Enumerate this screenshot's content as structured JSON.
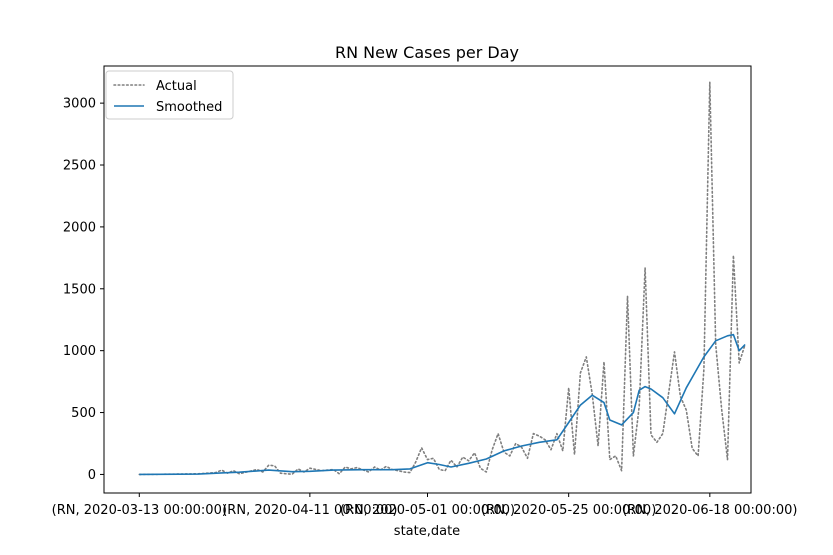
{
  "chart_data": {
    "type": "line",
    "title": "RN New Cases per Day",
    "xlabel": "state,date",
    "ylabel": "",
    "ylim": [
      -150,
      3300
    ],
    "yticks": [
      0,
      500,
      1000,
      1500,
      2000,
      2500,
      3000
    ],
    "xlim": [
      "2020-03-07",
      "2020-06-25"
    ],
    "xticks": [
      {
        "date": "2020-03-13",
        "label": "(RN, 2020-03-13 00:00:00)"
      },
      {
        "date": "2020-04-11",
        "label": "(RN, 2020-04-11 00:00:00)"
      },
      {
        "date": "2020-05-01",
        "label": "(RN, 2020-05-01 00:00:00)"
      },
      {
        "date": "2020-05-25",
        "label": "(RN, 2020-05-25 00:00:00)"
      },
      {
        "date": "2020-06-18",
        "label": "(RN, 2020-06-18 00:00:00)"
      }
    ],
    "legend": {
      "placement": "top-left",
      "entries": [
        "Actual",
        "Smoothed"
      ]
    },
    "grid": false,
    "series": [
      {
        "name": "Actual",
        "color": "#7f7f7f",
        "style": "dotted",
        "points": [
          [
            "2020-03-13",
            0
          ],
          [
            "2020-03-18",
            2
          ],
          [
            "2020-03-23",
            5
          ],
          [
            "2020-03-26",
            15
          ],
          [
            "2020-03-27",
            35
          ],
          [
            "2020-03-28",
            10
          ],
          [
            "2020-03-29",
            30
          ],
          [
            "2020-03-30",
            5
          ],
          [
            "2020-04-02",
            40
          ],
          [
            "2020-04-03",
            20
          ],
          [
            "2020-04-04",
            75
          ],
          [
            "2020-04-05",
            70
          ],
          [
            "2020-04-06",
            10
          ],
          [
            "2020-04-07",
            5
          ],
          [
            "2020-04-08",
            2
          ],
          [
            "2020-04-09",
            45
          ],
          [
            "2020-04-10",
            20
          ],
          [
            "2020-04-11",
            50
          ],
          [
            "2020-04-13",
            30
          ],
          [
            "2020-04-15",
            40
          ],
          [
            "2020-04-16",
            5
          ],
          [
            "2020-04-17",
            60
          ],
          [
            "2020-04-18",
            45
          ],
          [
            "2020-04-19",
            55
          ],
          [
            "2020-04-21",
            20
          ],
          [
            "2020-04-22",
            60
          ],
          [
            "2020-04-23",
            35
          ],
          [
            "2020-04-24",
            65
          ],
          [
            "2020-04-25",
            40
          ],
          [
            "2020-04-26",
            30
          ],
          [
            "2020-04-27",
            20
          ],
          [
            "2020-04-28",
            15
          ],
          [
            "2020-04-29",
            100
          ],
          [
            "2020-04-30",
            215
          ],
          [
            "2020-05-01",
            120
          ],
          [
            "2020-05-02",
            130
          ],
          [
            "2020-05-03",
            40
          ],
          [
            "2020-05-04",
            30
          ],
          [
            "2020-05-05",
            115
          ],
          [
            "2020-05-06",
            60
          ],
          [
            "2020-05-07",
            140
          ],
          [
            "2020-05-08",
            110
          ],
          [
            "2020-05-09",
            175
          ],
          [
            "2020-05-10",
            50
          ],
          [
            "2020-05-11",
            20
          ],
          [
            "2020-05-12",
            200
          ],
          [
            "2020-05-13",
            330
          ],
          [
            "2020-05-14",
            180
          ],
          [
            "2020-05-15",
            150
          ],
          [
            "2020-05-16",
            250
          ],
          [
            "2020-05-17",
            220
          ],
          [
            "2020-05-18",
            130
          ],
          [
            "2020-05-19",
            330
          ],
          [
            "2020-05-20",
            310
          ],
          [
            "2020-05-21",
            280
          ],
          [
            "2020-05-22",
            200
          ],
          [
            "2020-05-23",
            330
          ],
          [
            "2020-05-24",
            190
          ],
          [
            "2020-05-25",
            700
          ],
          [
            "2020-05-26",
            160
          ],
          [
            "2020-05-27",
            820
          ],
          [
            "2020-05-28",
            950
          ],
          [
            "2020-05-29",
            650
          ],
          [
            "2020-05-30",
            230
          ],
          [
            "2020-05-31",
            910
          ],
          [
            "2020-06-01",
            120
          ],
          [
            "2020-06-02",
            150
          ],
          [
            "2020-06-03",
            30
          ],
          [
            "2020-06-04",
            1440
          ],
          [
            "2020-06-05",
            150
          ],
          [
            "2020-06-06",
            550
          ],
          [
            "2020-06-07",
            1670
          ],
          [
            "2020-06-08",
            320
          ],
          [
            "2020-06-09",
            260
          ],
          [
            "2020-06-10",
            330
          ],
          [
            "2020-06-11",
            660
          ],
          [
            "2020-06-12",
            990
          ],
          [
            "2020-06-13",
            630
          ],
          [
            "2020-06-14",
            520
          ],
          [
            "2020-06-15",
            210
          ],
          [
            "2020-06-16",
            150
          ],
          [
            "2020-06-17",
            850
          ],
          [
            "2020-06-18",
            3170
          ],
          [
            "2020-06-19",
            1050
          ],
          [
            "2020-06-20",
            530
          ],
          [
            "2020-06-21",
            120
          ],
          [
            "2020-06-22",
            1770
          ],
          [
            "2020-06-23",
            900
          ],
          [
            "2020-06-24",
            1050
          ]
        ]
      },
      {
        "name": "Smoothed",
        "color": "#1f77b4",
        "style": "solid",
        "points": [
          [
            "2020-03-13",
            0
          ],
          [
            "2020-03-23",
            3
          ],
          [
            "2020-03-27",
            12
          ],
          [
            "2020-03-30",
            18
          ],
          [
            "2020-04-04",
            35
          ],
          [
            "2020-04-08",
            22
          ],
          [
            "2020-04-11",
            25
          ],
          [
            "2020-04-15",
            35
          ],
          [
            "2020-04-20",
            38
          ],
          [
            "2020-04-25",
            38
          ],
          [
            "2020-04-28",
            45
          ],
          [
            "2020-05-01",
            95
          ],
          [
            "2020-05-03",
            80
          ],
          [
            "2020-05-05",
            60
          ],
          [
            "2020-05-08",
            90
          ],
          [
            "2020-05-11",
            125
          ],
          [
            "2020-05-14",
            190
          ],
          [
            "2020-05-17",
            230
          ],
          [
            "2020-05-20",
            260
          ],
          [
            "2020-05-23",
            280
          ],
          [
            "2020-05-25",
            420
          ],
          [
            "2020-05-27",
            560
          ],
          [
            "2020-05-29",
            640
          ],
          [
            "2020-05-31",
            580
          ],
          [
            "2020-06-01",
            440
          ],
          [
            "2020-06-03",
            400
          ],
          [
            "2020-06-05",
            500
          ],
          [
            "2020-06-06",
            680
          ],
          [
            "2020-06-07",
            710
          ],
          [
            "2020-06-08",
            690
          ],
          [
            "2020-06-10",
            620
          ],
          [
            "2020-06-12",
            490
          ],
          [
            "2020-06-14",
            700
          ],
          [
            "2020-06-17",
            950
          ],
          [
            "2020-06-19",
            1080
          ],
          [
            "2020-06-21",
            1120
          ],
          [
            "2020-06-22",
            1130
          ],
          [
            "2020-06-23",
            1000
          ],
          [
            "2020-06-24",
            1050
          ]
        ]
      }
    ]
  }
}
